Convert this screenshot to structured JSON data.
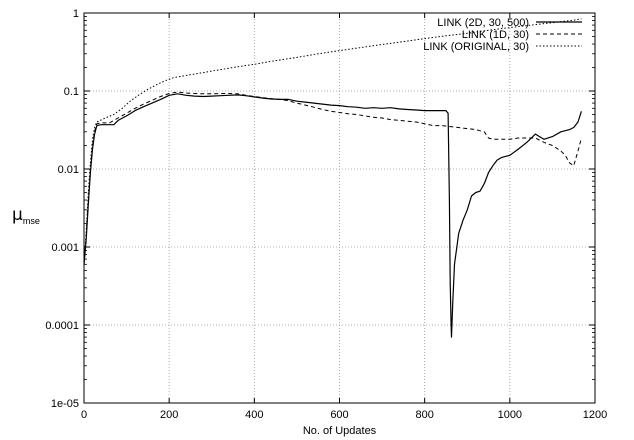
{
  "chart_data": {
    "type": "line",
    "xlabel": "No. of Updates",
    "ylabel_main": "μ",
    "ylabel_sub": "mse",
    "xlim": [
      0,
      1200
    ],
    "ylim": [
      1e-05,
      1
    ],
    "yscale": "log",
    "grid": true,
    "legend_position": "top-right",
    "x_ticks": [
      0,
      200,
      400,
      600,
      800,
      1000,
      1200
    ],
    "x_tick_labels": [
      "0",
      "200",
      "400",
      "600",
      "800",
      "1000",
      "1200"
    ],
    "y_ticks": [
      1e-05,
      0.0001,
      0.001,
      0.01,
      0.1,
      1
    ],
    "y_tick_labels": [
      "1e-05",
      "0.0001",
      "0.001",
      "0.01",
      "0.1",
      "1"
    ],
    "series": [
      {
        "name": "LINK (2D, 30, 500)",
        "style": "solid",
        "points": [
          [
            0,
            0.0006
          ],
          [
            5,
            0.0012
          ],
          [
            10,
            0.0035
          ],
          [
            15,
            0.009
          ],
          [
            20,
            0.018
          ],
          [
            25,
            0.028
          ],
          [
            30,
            0.036
          ],
          [
            40,
            0.037
          ],
          [
            60,
            0.037
          ],
          [
            70,
            0.037
          ],
          [
            80,
            0.042
          ],
          [
            100,
            0.048
          ],
          [
            120,
            0.056
          ],
          [
            140,
            0.063
          ],
          [
            160,
            0.07
          ],
          [
            180,
            0.078
          ],
          [
            200,
            0.088
          ],
          [
            220,
            0.092
          ],
          [
            240,
            0.088
          ],
          [
            260,
            0.086
          ],
          [
            280,
            0.085
          ],
          [
            300,
            0.086
          ],
          [
            320,
            0.087
          ],
          [
            340,
            0.088
          ],
          [
            360,
            0.089
          ],
          [
            380,
            0.087
          ],
          [
            400,
            0.084
          ],
          [
            420,
            0.081
          ],
          [
            440,
            0.079
          ],
          [
            460,
            0.078
          ],
          [
            480,
            0.078
          ],
          [
            500,
            0.074
          ],
          [
            520,
            0.072
          ],
          [
            540,
            0.07
          ],
          [
            560,
            0.068
          ],
          [
            580,
            0.066
          ],
          [
            600,
            0.065
          ],
          [
            620,
            0.063
          ],
          [
            640,
            0.062
          ],
          [
            660,
            0.06
          ],
          [
            680,
            0.061
          ],
          [
            700,
            0.06
          ],
          [
            720,
            0.061
          ],
          [
            740,
            0.059
          ],
          [
            760,
            0.058
          ],
          [
            780,
            0.057
          ],
          [
            800,
            0.056
          ],
          [
            820,
            0.056
          ],
          [
            840,
            0.056
          ],
          [
            850,
            0.056
          ],
          [
            855,
            0.052
          ],
          [
            858,
            0.004
          ],
          [
            860,
            0.00035
          ],
          [
            862,
            0.0001
          ],
          [
            863,
            7e-05
          ],
          [
            866,
            0.0002
          ],
          [
            870,
            0.0006
          ],
          [
            880,
            0.0015
          ],
          [
            890,
            0.0022
          ],
          [
            900,
            0.003
          ],
          [
            910,
            0.0045
          ],
          [
            920,
            0.005
          ],
          [
            930,
            0.0052
          ],
          [
            940,
            0.0065
          ],
          [
            950,
            0.009
          ],
          [
            960,
            0.011
          ],
          [
            970,
            0.013
          ],
          [
            980,
            0.014
          ],
          [
            1000,
            0.015
          ],
          [
            1020,
            0.018
          ],
          [
            1040,
            0.022
          ],
          [
            1060,
            0.028
          ],
          [
            1080,
            0.024
          ],
          [
            1100,
            0.026
          ],
          [
            1120,
            0.03
          ],
          [
            1140,
            0.032
          ],
          [
            1150,
            0.034
          ],
          [
            1160,
            0.04
          ],
          [
            1168,
            0.055
          ]
        ]
      },
      {
        "name": "LINK (1D, 30)",
        "style": "dashed",
        "points": [
          [
            0,
            0.0006
          ],
          [
            5,
            0.0013
          ],
          [
            10,
            0.004
          ],
          [
            15,
            0.01
          ],
          [
            20,
            0.02
          ],
          [
            25,
            0.03
          ],
          [
            30,
            0.038
          ],
          [
            40,
            0.039
          ],
          [
            60,
            0.039
          ],
          [
            80,
            0.045
          ],
          [
            100,
            0.052
          ],
          [
            120,
            0.06
          ],
          [
            140,
            0.068
          ],
          [
            160,
            0.076
          ],
          [
            180,
            0.085
          ],
          [
            200,
            0.093
          ],
          [
            220,
            0.097
          ],
          [
            240,
            0.094
          ],
          [
            260,
            0.093
          ],
          [
            280,
            0.092
          ],
          [
            300,
            0.092
          ],
          [
            320,
            0.093
          ],
          [
            340,
            0.093
          ],
          [
            360,
            0.092
          ],
          [
            380,
            0.088
          ],
          [
            400,
            0.085
          ],
          [
            420,
            0.082
          ],
          [
            440,
            0.08
          ],
          [
            460,
            0.078
          ],
          [
            480,
            0.075
          ],
          [
            500,
            0.07
          ],
          [
            520,
            0.066
          ],
          [
            540,
            0.062
          ],
          [
            560,
            0.058
          ],
          [
            580,
            0.055
          ],
          [
            600,
            0.053
          ],
          [
            620,
            0.051
          ],
          [
            640,
            0.05
          ],
          [
            660,
            0.048
          ],
          [
            680,
            0.046
          ],
          [
            700,
            0.045
          ],
          [
            720,
            0.043
          ],
          [
            740,
            0.042
          ],
          [
            760,
            0.041
          ],
          [
            780,
            0.04
          ],
          [
            800,
            0.038
          ],
          [
            820,
            0.036
          ],
          [
            840,
            0.036
          ],
          [
            860,
            0.035
          ],
          [
            880,
            0.034
          ],
          [
            900,
            0.033
          ],
          [
            920,
            0.032
          ],
          [
            940,
            0.03
          ],
          [
            950,
            0.025
          ],
          [
            960,
            0.024
          ],
          [
            980,
            0.024
          ],
          [
            1000,
            0.024
          ],
          [
            1020,
            0.025
          ],
          [
            1040,
            0.025
          ],
          [
            1060,
            0.025
          ],
          [
            1080,
            0.022
          ],
          [
            1100,
            0.02
          ],
          [
            1120,
            0.017
          ],
          [
            1130,
            0.015
          ],
          [
            1140,
            0.012
          ],
          [
            1150,
            0.011
          ],
          [
            1160,
            0.017
          ],
          [
            1168,
            0.025
          ]
        ]
      },
      {
        "name": "LINK (ORIGINAL, 30)",
        "style": "dotted",
        "points": [
          [
            0,
            0.0006
          ],
          [
            5,
            0.0015
          ],
          [
            10,
            0.005
          ],
          [
            15,
            0.012
          ],
          [
            20,
            0.024
          ],
          [
            25,
            0.034
          ],
          [
            30,
            0.04
          ],
          [
            50,
            0.045
          ],
          [
            70,
            0.05
          ],
          [
            90,
            0.06
          ],
          [
            110,
            0.075
          ],
          [
            130,
            0.09
          ],
          [
            150,
            0.105
          ],
          [
            170,
            0.12
          ],
          [
            190,
            0.135
          ],
          [
            210,
            0.148
          ],
          [
            230,
            0.155
          ],
          [
            260,
            0.165
          ],
          [
            300,
            0.18
          ],
          [
            350,
            0.2
          ],
          [
            400,
            0.22
          ],
          [
            450,
            0.245
          ],
          [
            500,
            0.27
          ],
          [
            550,
            0.3
          ],
          [
            600,
            0.33
          ],
          [
            650,
            0.36
          ],
          [
            700,
            0.395
          ],
          [
            750,
            0.43
          ],
          [
            800,
            0.47
          ],
          [
            850,
            0.51
          ],
          [
            900,
            0.55
          ],
          [
            950,
            0.6
          ],
          [
            1000,
            0.65
          ],
          [
            1050,
            0.7
          ],
          [
            1100,
            0.75
          ],
          [
            1150,
            0.81
          ],
          [
            1168,
            0.84
          ]
        ]
      }
    ]
  }
}
